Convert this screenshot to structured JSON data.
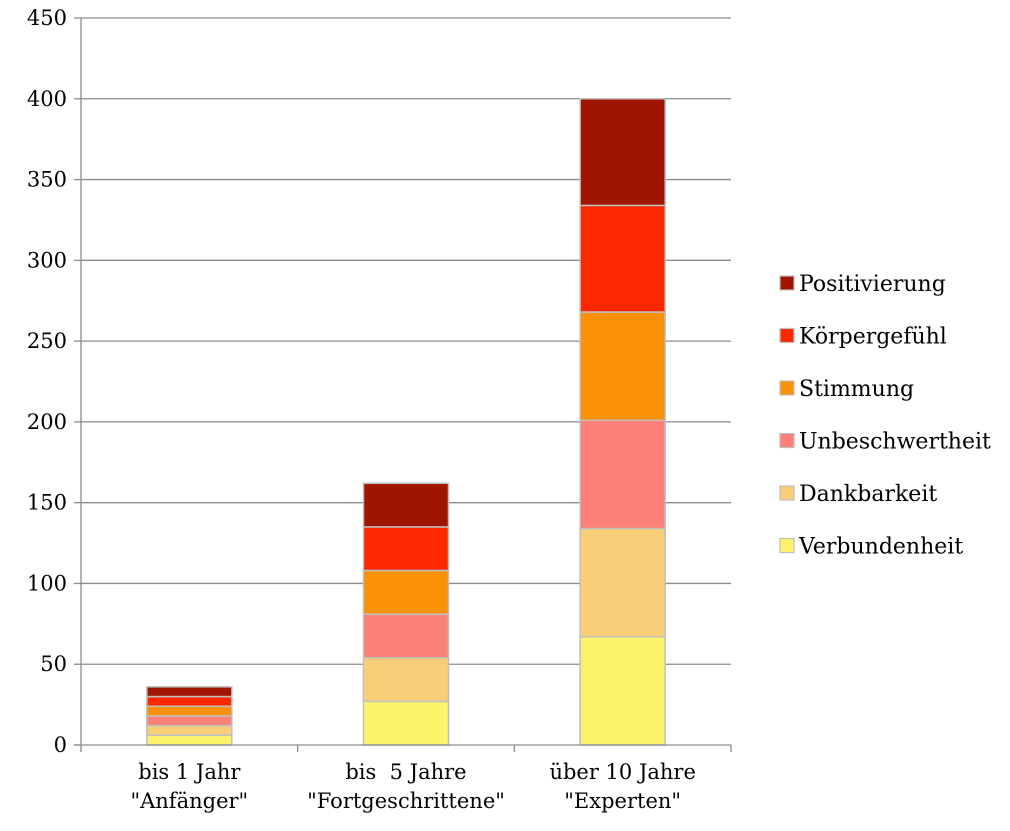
{
  "chart_data": {
    "type": "bar",
    "stacked": true,
    "title": "",
    "xlabel": "",
    "ylabel": "",
    "ylim": [
      0,
      450
    ],
    "yticks": [
      0,
      50,
      100,
      150,
      200,
      250,
      300,
      350,
      400,
      450
    ],
    "grid": true,
    "legend_position": "right",
    "categories": [
      [
        "bis 1 Jahr",
        "\"Anfänger\""
      ],
      [
        "bis  5 Jahre",
        "\"Fortgeschrittene\""
      ],
      [
        "über 10 Jahre",
        "\"Experten\""
      ]
    ],
    "series": [
      {
        "name": "Verbundenheit",
        "color": "#fdf36b",
        "values": [
          6,
          27,
          67
        ]
      },
      {
        "name": "Dankbarkeit",
        "color": "#f9ce78",
        "values": [
          6,
          27,
          67
        ]
      },
      {
        "name": "Unbeschwertheit",
        "color": "#fb8078",
        "values": [
          6,
          27,
          67
        ]
      },
      {
        "name": "Stimmung",
        "color": "#fb9106",
        "values": [
          6,
          27,
          67
        ]
      },
      {
        "name": "Körpergefühl",
        "color": "#fb2800",
        "values": [
          6,
          27,
          66
        ]
      },
      {
        "name": "Positivierung",
        "color": "#a01500",
        "values": [
          6,
          27,
          66
        ]
      }
    ]
  }
}
